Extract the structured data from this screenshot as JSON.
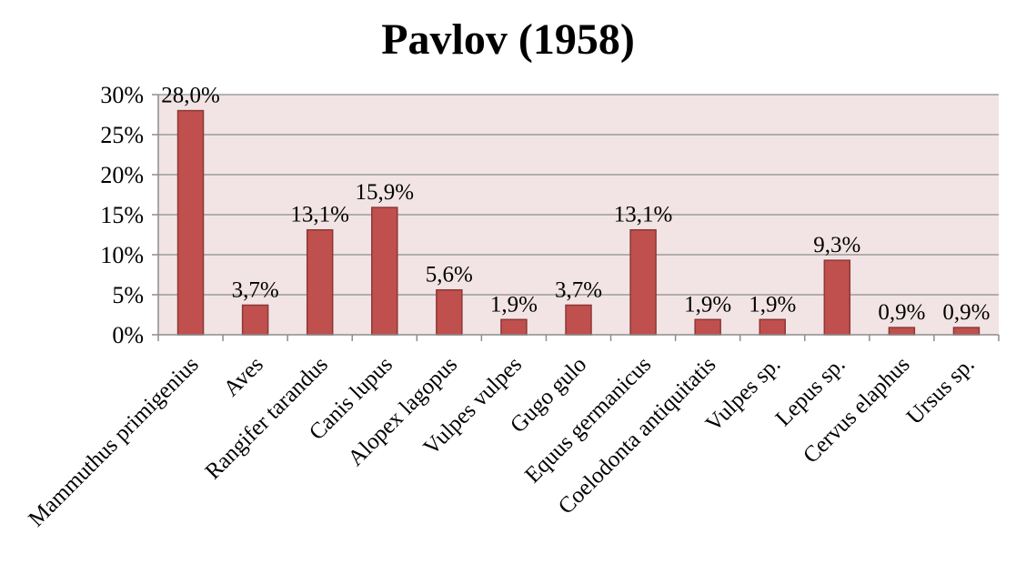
{
  "chart_data": {
    "type": "bar",
    "title": "Pavlov (1958)",
    "xlabel": "",
    "ylabel": "",
    "categories": [
      "Mammuthus primigenius",
      "Aves",
      "Rangifer tarandus",
      "Canis lupus",
      "Alopex lagopus",
      "Vulpes vulpes",
      "Gugo gulo",
      "Equus germanicus",
      "Coelodonta antiquitatis",
      "Vulpes sp.",
      "Lepus sp.",
      "Cervus elaphus",
      "Ursus sp."
    ],
    "values": [
      28.0,
      3.7,
      13.1,
      15.9,
      5.6,
      1.9,
      3.7,
      13.1,
      1.9,
      1.9,
      9.3,
      0.9,
      0.9
    ],
    "data_labels": [
      "28,0%",
      "3,7%",
      "13,1%",
      "15,9%",
      "5,6%",
      "1,9%",
      "3,7%",
      "13,1%",
      "1,9%",
      "1,9%",
      "9,3%",
      "0,9%",
      "0,9%"
    ],
    "y_ticks": [
      0,
      5,
      10,
      15,
      20,
      25,
      30
    ],
    "y_tick_labels": [
      "0%",
      "5%",
      "10%",
      "15%",
      "20%",
      "25%",
      "30%"
    ],
    "ylim": [
      0,
      30
    ],
    "grid": true,
    "legend": "none",
    "colors": {
      "bar_fill": "#c0504d",
      "bar_stroke": "#8c3836",
      "plot_background": "#f2e4e4",
      "gridline": "#8c8c8c",
      "axis": "#8c8c8c",
      "text": "#000000"
    }
  }
}
